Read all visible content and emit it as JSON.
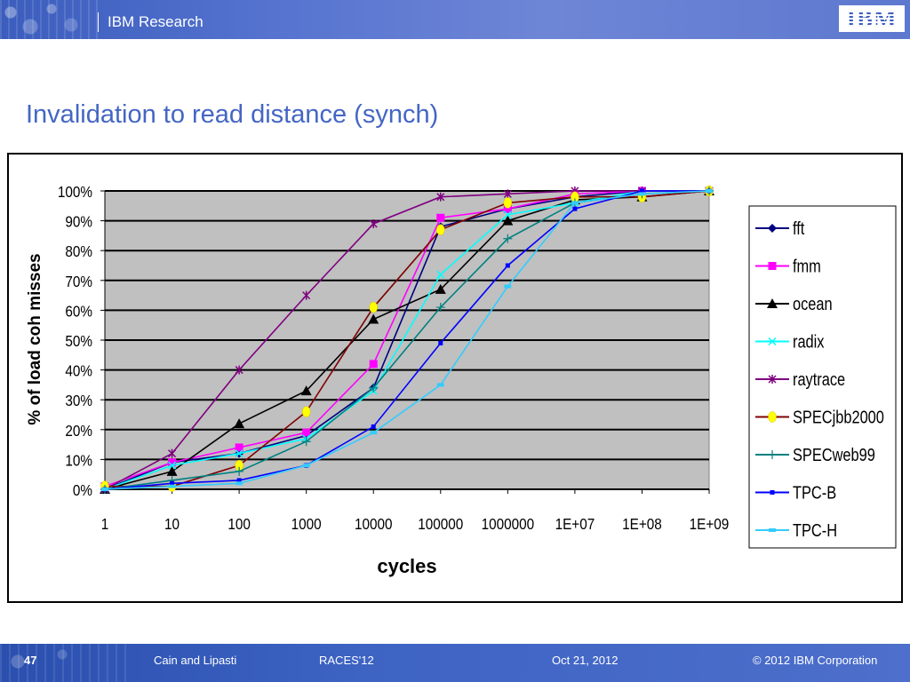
{
  "header": {
    "brand": "IBM Research",
    "logo": "IBM"
  },
  "slide": {
    "title": "Invalidation to read distance (synch)"
  },
  "footer": {
    "page": "47",
    "authors": "Cain and Lipasti",
    "conference": "RACES'12",
    "date": "Oct 21, 2012",
    "copyright": "© 2012 IBM Corporation"
  },
  "chart_data": {
    "type": "line",
    "xlabel": "cycles",
    "ylabel": "% of load coh misses",
    "x": [
      1,
      10,
      100,
      1000,
      10000,
      100000,
      1000000,
      10000000,
      100000000,
      1000000000
    ],
    "x_tick_labels": [
      "1",
      "10",
      "100",
      "1000",
      "10000",
      "100000",
      "1000000",
      "1E+07",
      "1E+08",
      "1E+09"
    ],
    "x_scale": "log",
    "ylim": [
      0,
      100
    ],
    "y_tick_labels": [
      "0%",
      "10%",
      "20%",
      "30%",
      "40%",
      "50%",
      "60%",
      "70%",
      "80%",
      "90%",
      "100%"
    ],
    "grid": "horizontal",
    "plot_background": "#c0c0c0",
    "legend": "right",
    "series": [
      {
        "name": "fft",
        "color": "#000080",
        "marker": "diamond",
        "values": [
          0,
          9,
          12,
          18,
          34,
          88,
          94,
          98,
          100,
          100
        ]
      },
      {
        "name": "fmm",
        "color": "#ff00ff",
        "marker": "square",
        "values": [
          1,
          9,
          14,
          19,
          42,
          91,
          94,
          99,
          100,
          100
        ]
      },
      {
        "name": "ocean",
        "color": "#000000",
        "marker": "triangle",
        "values": [
          0,
          6,
          22,
          33,
          57,
          67,
          90,
          97,
          98,
          100
        ]
      },
      {
        "name": "radix",
        "color": "#00ffff",
        "marker": "x",
        "values": [
          0,
          8,
          12,
          17,
          33,
          72,
          92,
          96,
          100,
          100
        ]
      },
      {
        "name": "raytrace",
        "color": "#800080",
        "marker": "star",
        "values": [
          0,
          12,
          40,
          65,
          89,
          98,
          99,
          100,
          100,
          100
        ]
      },
      {
        "name": "SPECjbb2000",
        "color": "#800000",
        "marker": "circle",
        "values": [
          1,
          1,
          8,
          26,
          61,
          87,
          96,
          98,
          98,
          100
        ]
      },
      {
        "name": "SPECweb99",
        "color": "#008080",
        "marker": "plus",
        "values": [
          0,
          3,
          6,
          16,
          34,
          61,
          84,
          96,
          99,
          100
        ]
      },
      {
        "name": "TPC-B",
        "color": "#0000ff",
        "marker": "smallsquare",
        "values": [
          0,
          2,
          3,
          8,
          21,
          49,
          75,
          94,
          100,
          100
        ]
      },
      {
        "name": "TPC-H",
        "color": "#33ccff",
        "marker": "dash",
        "values": [
          0,
          1,
          2,
          8,
          19,
          35,
          68,
          96,
          99,
          100
        ]
      }
    ]
  }
}
